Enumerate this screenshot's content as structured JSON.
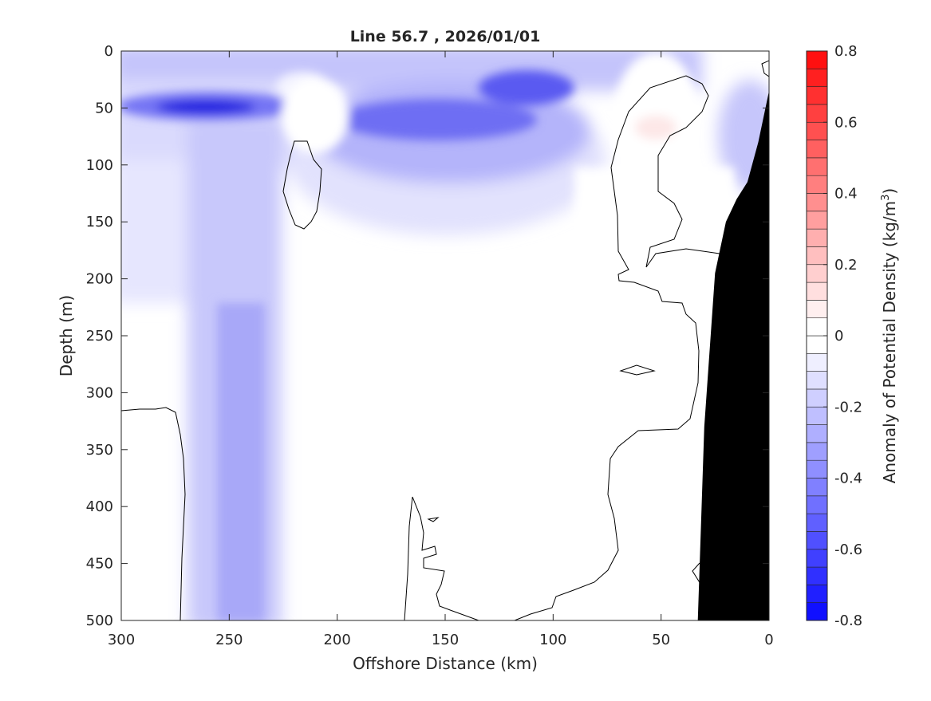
{
  "chart_data": {
    "type": "heatmap",
    "subtype": "filled-contour",
    "title": "Line 56.7 , 2026/01/01",
    "xlabel": "Offshore Distance (km)",
    "ylabel": "Depth (m)",
    "xlim": [
      300,
      0
    ],
    "ylim": [
      0,
      500
    ],
    "x_direction": "reversed",
    "y_direction": "reversed",
    "x_ticks": [
      300,
      250,
      200,
      150,
      100,
      50,
      0
    ],
    "x_tick_labels": [
      "300",
      "250",
      "200",
      "150",
      "100",
      "50",
      "0"
    ],
    "y_ticks": [
      0,
      50,
      100,
      150,
      200,
      250,
      300,
      350,
      400,
      450,
      500
    ],
    "y_tick_labels": [
      "0",
      "50",
      "100",
      "150",
      "200",
      "250",
      "300",
      "350",
      "400",
      "450",
      "500"
    ],
    "colorbar": {
      "label": "Anomaly of Potential Density (kg/m",
      "label_superscript": "3",
      "label_close": ")",
      "range": [
        -0.8,
        0.8
      ],
      "step": 0.05,
      "ticks": [
        -0.8,
        -0.6,
        -0.4,
        -0.2,
        0,
        0.2,
        0.4,
        0.6,
        0.8
      ],
      "tick_labels": [
        "-0.8",
        "-0.6",
        "-0.4",
        "-0.2",
        "0",
        "0.2",
        "0.4",
        "0.6",
        "0.8"
      ],
      "negative_color": "#0000ff",
      "positive_color": "#ff0000",
      "neutral_color": "#ffffff"
    },
    "features": [
      {
        "name": "core-min",
        "x": 255,
        "depth": 50,
        "value": -0.6
      },
      {
        "name": "surface-negative-band",
        "x_range": [
          300,
          75
        ],
        "depth_range": [
          0,
          90
        ],
        "value": -0.35
      },
      {
        "name": "deep-column",
        "x_range": [
          265,
          225
        ],
        "depth_range": [
          100,
          500
        ],
        "value": -0.25
      },
      {
        "name": "mid-shelf-negative",
        "x_range": [
          190,
          100
        ],
        "depth_range": [
          30,
          80
        ],
        "value": -0.45
      },
      {
        "name": "positive-patch",
        "x": 55,
        "depth": 65,
        "value": 0.03
      }
    ],
    "zero_contour": "black line at anomaly = 0",
    "bathymetry": {
      "color": "#000000",
      "profile_depth_m": [
        [
          0,
          35
        ],
        [
          5,
          80
        ],
        [
          10,
          115
        ],
        [
          15,
          130
        ],
        [
          20,
          150
        ],
        [
          25,
          195
        ],
        [
          30,
          330
        ],
        [
          33,
          500
        ]
      ]
    }
  }
}
